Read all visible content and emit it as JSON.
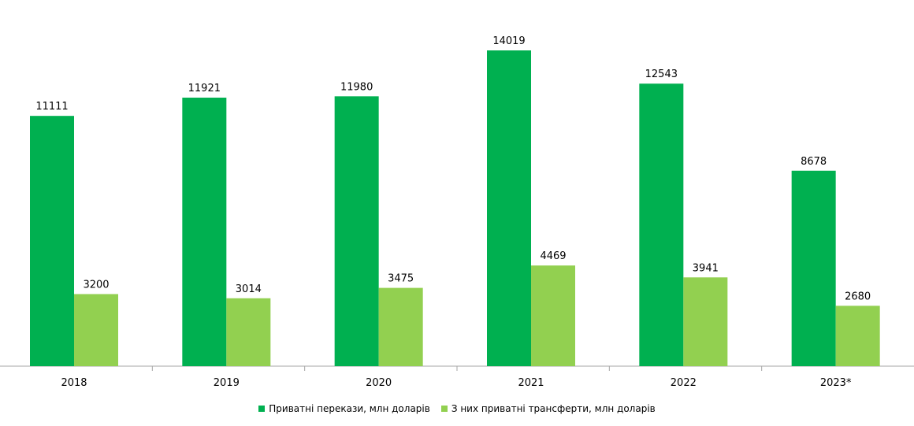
{
  "chart_data": {
    "type": "bar",
    "categories": [
      "2018",
      "2019",
      "2020",
      "2021",
      "2022",
      "2023*"
    ],
    "series": [
      {
        "name": "Приватні перекази, млн доларів",
        "values": [
          11111,
          11921,
          11980,
          14019,
          12543,
          8678
        ],
        "color": "#00b050"
      },
      {
        "name": "З них приватні трансферти, млн доларів",
        "values": [
          3200,
          3014,
          3475,
          4469,
          3941,
          2680
        ],
        "color": "#92d050"
      }
    ],
    "ylim": [
      0,
      15000
    ],
    "grid": false,
    "legend": "bottom",
    "title": "",
    "xlabel": "",
    "ylabel": ""
  }
}
